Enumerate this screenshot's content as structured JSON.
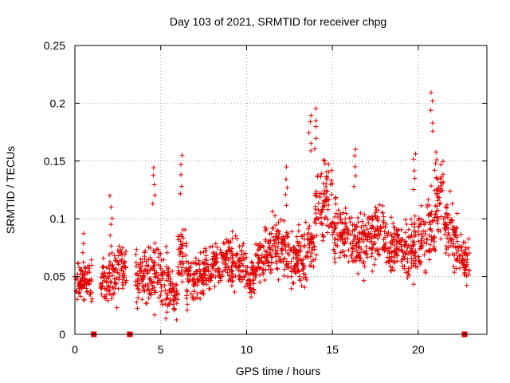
{
  "chart_data": {
    "type": "scatter",
    "title": "Day 103 of 2021, SRMTID for receiver chpg",
    "xlabel": "GPS time / hours",
    "ylabel": "SRMTID / TECUs",
    "xlim": [
      0,
      24
    ],
    "ylim": [
      0,
      0.25
    ],
    "xticks": [
      0,
      5,
      10,
      15,
      20
    ],
    "xtick_labels": [
      "0",
      "5",
      "10",
      "15",
      "20"
    ],
    "yticks": [
      0,
      0.05,
      0.1,
      0.15,
      0.2,
      0.25
    ],
    "ytick_labels": [
      "0",
      "0.05",
      "0.1",
      "0.15",
      "0.2",
      "0.25"
    ],
    "grid": true,
    "marker": "plus",
    "color": "#e00000",
    "square_markers_at_zero": [
      1.1,
      3.2,
      22.7
    ],
    "series": [
      {
        "name": "SRMTID",
        "profile_note": "sampled per time bin: center value, spread, a few peaks",
        "x": [
          0.0,
          0.5,
          1.0,
          1.5,
          2.0,
          2.5,
          3.0,
          3.5,
          4.0,
          4.5,
          5.0,
          5.5,
          6.0,
          6.5,
          7.0,
          7.5,
          8.0,
          8.5,
          9.0,
          9.5,
          10.0,
          10.5,
          11.0,
          11.5,
          12.0,
          12.5,
          13.0,
          13.5,
          14.0,
          14.5,
          15.0,
          15.5,
          16.0,
          16.5,
          17.0,
          17.5,
          18.0,
          18.5,
          19.0,
          19.5,
          20.0,
          20.5,
          21.0,
          21.5,
          22.0,
          22.5
        ],
        "center": [
          0.045,
          0.045,
          0.0,
          0.045,
          0.05,
          0.055,
          0.0,
          0.05,
          0.05,
          0.055,
          0.045,
          0.035,
          0.07,
          0.045,
          0.05,
          0.055,
          0.06,
          0.065,
          0.065,
          0.06,
          0.05,
          0.065,
          0.07,
          0.075,
          0.07,
          0.065,
          0.065,
          0.075,
          0.11,
          0.12,
          0.09,
          0.085,
          0.08,
          0.08,
          0.085,
          0.09,
          0.075,
          0.075,
          0.075,
          0.075,
          0.08,
          0.09,
          0.12,
          0.09,
          0.075,
          0.065
        ],
        "spread": [
          0.018,
          0.02,
          0.0,
          0.02,
          0.025,
          0.025,
          0.0,
          0.03,
          0.03,
          0.035,
          0.03,
          0.02,
          0.03,
          0.025,
          0.02,
          0.02,
          0.02,
          0.025,
          0.025,
          0.02,
          0.02,
          0.02,
          0.025,
          0.03,
          0.025,
          0.025,
          0.03,
          0.03,
          0.04,
          0.035,
          0.03,
          0.03,
          0.03,
          0.03,
          0.03,
          0.03,
          0.025,
          0.025,
          0.03,
          0.03,
          0.03,
          0.035,
          0.04,
          0.03,
          0.03,
          0.025
        ],
        "peaks": [
          {
            "x": 0.5,
            "y": 0.088
          },
          {
            "x": 2.1,
            "y": 0.12
          },
          {
            "x": 4.6,
            "y": 0.148
          },
          {
            "x": 6.2,
            "y": 0.155
          },
          {
            "x": 12.3,
            "y": 0.145
          },
          {
            "x": 13.7,
            "y": 0.193
          },
          {
            "x": 14.0,
            "y": 0.196
          },
          {
            "x": 16.3,
            "y": 0.163
          },
          {
            "x": 19.8,
            "y": 0.16
          },
          {
            "x": 20.8,
            "y": 0.21
          },
          {
            "x": 21.0,
            "y": 0.16
          }
        ]
      }
    ]
  }
}
